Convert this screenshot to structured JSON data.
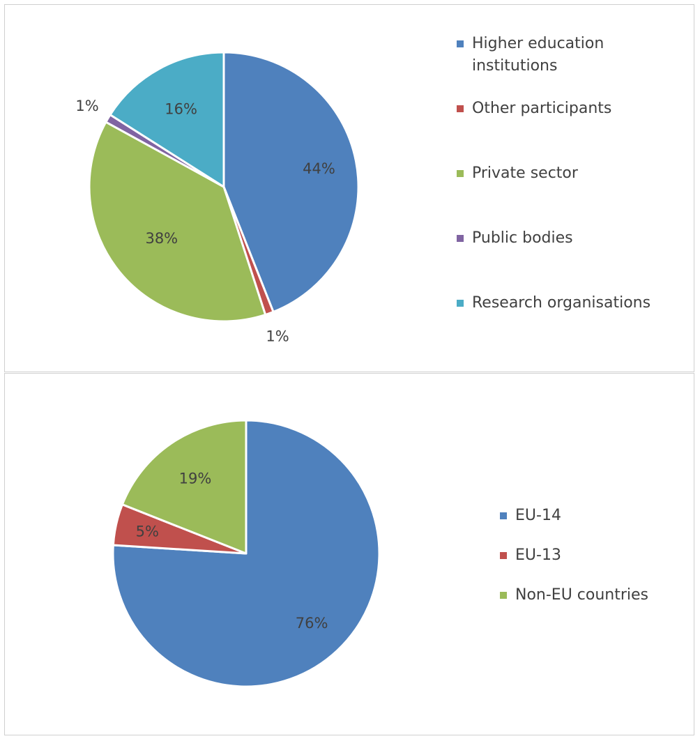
{
  "chart_data": [
    {
      "type": "pie",
      "title": "",
      "legend_position": "right",
      "slices": [
        {
          "label": "Higher education institutions",
          "value": 44,
          "display": "44%",
          "color": "#4f81bd"
        },
        {
          "label": "Other participants",
          "value": 1,
          "display": "1%",
          "color": "#c0504d"
        },
        {
          "label": "Private sector",
          "value": 38,
          "display": "38%",
          "color": "#9bbb59"
        },
        {
          "label": "Public bodies",
          "value": 1,
          "display": "1%",
          "color": "#8064a2"
        },
        {
          "label": "Research organisations",
          "value": 16,
          "display": "16%",
          "color": "#4bacc6"
        }
      ]
    },
    {
      "type": "pie",
      "title": "",
      "legend_position": "right",
      "slices": [
        {
          "label": "EU-14",
          "value": 76,
          "display": "76%",
          "color": "#4f81bd"
        },
        {
          "label": "EU-13",
          "value": 5,
          "display": "5%",
          "color": "#c0504d"
        },
        {
          "label": "Non-EU countries",
          "value": 19,
          "display": "19%",
          "color": "#9bbb59"
        }
      ]
    }
  ]
}
